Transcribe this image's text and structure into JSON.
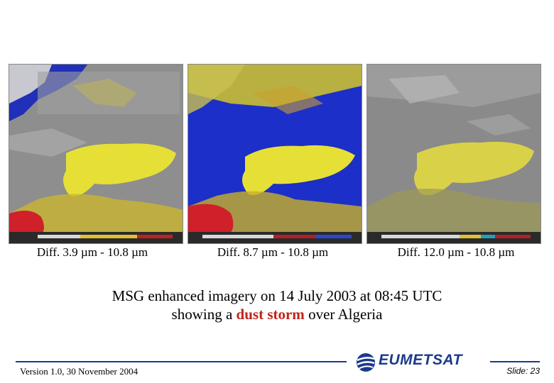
{
  "panels": [
    {
      "caption": "Diff. 3.9 µm - 10.8 µm",
      "colorbar": "IR_GPT1"
    },
    {
      "caption": "Diff. 8.7 µm - 10.8 µm",
      "colorbar": "IR_GPT1"
    },
    {
      "caption": "Diff. 12.0 µm - 10.8 µm",
      "colorbar": "IR_GPT1"
    }
  ],
  "main": {
    "line1": "MSG enhanced imagery on 14 July 2003 at 08:45 UTC",
    "line2_before": "showing a ",
    "line2_highlight": "dust storm",
    "line2_after": " over Algeria"
  },
  "footer": {
    "version": "Version 1.0, 30 November 2004",
    "logo_text": "EUMETSAT",
    "slide": "Slide: 23"
  },
  "colors": {
    "highlight": "#c0241c",
    "brand": "#1a3a8c",
    "dust": "#e8e23c",
    "cloud_blue": "#1c2fc8",
    "hot_red": "#d0202a"
  }
}
